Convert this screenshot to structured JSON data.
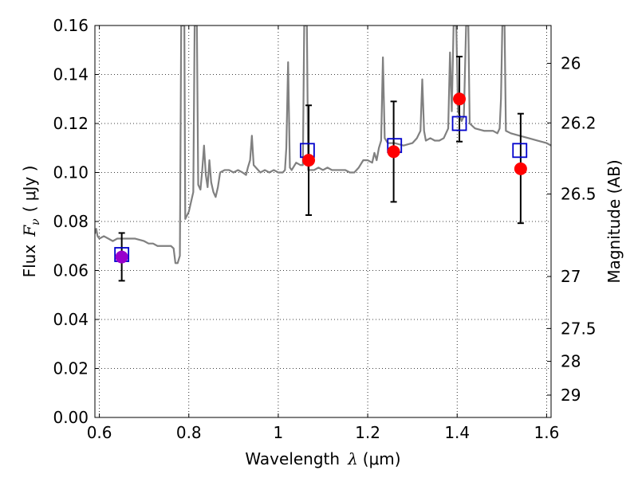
{
  "chart_data": {
    "type": "scatter",
    "xlabel": {
      "prefix": "Wavelength",
      "symbol": "λ",
      "unit": "(μm)"
    },
    "ylabel": {
      "prefix": "Flux",
      "symbol": "F",
      "subscript": "ν",
      "unit": "( μJy )"
    },
    "y2label": "Magnitude (AB)",
    "xlim": [
      0.59,
      1.61
    ],
    "ylim": [
      0.0,
      0.16
    ],
    "grid": true,
    "x_ticks": [
      {
        "value": 0.6,
        "label": "0.6"
      },
      {
        "value": 0.8,
        "label": "0.8"
      },
      {
        "value": 1.0,
        "label": "1"
      },
      {
        "value": 1.2,
        "label": "1.2"
      },
      {
        "value": 1.4,
        "label": "1.4"
      },
      {
        "value": 1.6,
        "label": "1.6"
      }
    ],
    "y_ticks": [
      {
        "value": 0.0,
        "label": "0.00"
      },
      {
        "value": 0.02,
        "label": "0.02"
      },
      {
        "value": 0.04,
        "label": "0.04"
      },
      {
        "value": 0.06,
        "label": "0.06"
      },
      {
        "value": 0.08,
        "label": "0.08"
      },
      {
        "value": 0.1,
        "label": "0.10"
      },
      {
        "value": 0.12,
        "label": "0.12"
      },
      {
        "value": 0.14,
        "label": "0.14"
      },
      {
        "value": 0.16,
        "label": "0.16"
      }
    ],
    "y2_ticks": [
      {
        "mag": 26.0,
        "label": "26"
      },
      {
        "mag": 26.2,
        "label": "26.2"
      },
      {
        "mag": 26.5,
        "label": "26.5"
      },
      {
        "mag": 27.0,
        "label": "27"
      },
      {
        "mag": 27.5,
        "label": "27.5"
      },
      {
        "mag": 28.0,
        "label": "28"
      },
      {
        "mag": 29.0,
        "label": "29"
      }
    ],
    "series": [
      {
        "kind": "model-spectrum",
        "color": "#808080",
        "points": [
          [
            0.59,
            0.075
          ],
          [
            0.593,
            0.077
          ],
          [
            0.596,
            0.074
          ],
          [
            0.6,
            0.073
          ],
          [
            0.61,
            0.074
          ],
          [
            0.62,
            0.073
          ],
          [
            0.63,
            0.072
          ],
          [
            0.64,
            0.073
          ],
          [
            0.66,
            0.073
          ],
          [
            0.68,
            0.073
          ],
          [
            0.7,
            0.072
          ],
          [
            0.71,
            0.071
          ],
          [
            0.72,
            0.071
          ],
          [
            0.73,
            0.07
          ],
          [
            0.74,
            0.07
          ],
          [
            0.76,
            0.07
          ],
          [
            0.766,
            0.069
          ],
          [
            0.77,
            0.063
          ],
          [
            0.775,
            0.063
          ],
          [
            0.78,
            0.066
          ],
          [
            0.783,
            0.16
          ],
          [
            0.79,
            0.16
          ],
          [
            0.792,
            0.081
          ],
          [
            0.8,
            0.084
          ],
          [
            0.805,
            0.088
          ],
          [
            0.81,
            0.092
          ],
          [
            0.813,
            0.16
          ],
          [
            0.818,
            0.16
          ],
          [
            0.821,
            0.095
          ],
          [
            0.826,
            0.093
          ],
          [
            0.83,
            0.101
          ],
          [
            0.834,
            0.111
          ],
          [
            0.838,
            0.099
          ],
          [
            0.842,
            0.094
          ],
          [
            0.846,
            0.105
          ],
          [
            0.85,
            0.096
          ],
          [
            0.855,
            0.092
          ],
          [
            0.86,
            0.09
          ],
          [
            0.865,
            0.094
          ],
          [
            0.87,
            0.1
          ],
          [
            0.88,
            0.101
          ],
          [
            0.89,
            0.101
          ],
          [
            0.9,
            0.1
          ],
          [
            0.91,
            0.101
          ],
          [
            0.92,
            0.1
          ],
          [
            0.928,
            0.099
          ],
          [
            0.932,
            0.102
          ],
          [
            0.937,
            0.105
          ],
          [
            0.941,
            0.115
          ],
          [
            0.945,
            0.103
          ],
          [
            0.95,
            0.102
          ],
          [
            0.96,
            0.1
          ],
          [
            0.97,
            0.101
          ],
          [
            0.98,
            0.1
          ],
          [
            0.99,
            0.101
          ],
          [
            1.0,
            0.1
          ],
          [
            1.01,
            0.1
          ],
          [
            1.015,
            0.101
          ],
          [
            1.018,
            0.11
          ],
          [
            1.022,
            0.145
          ],
          [
            1.026,
            0.102
          ],
          [
            1.03,
            0.101
          ],
          [
            1.04,
            0.104
          ],
          [
            1.05,
            0.103
          ],
          [
            1.055,
            0.103
          ],
          [
            1.058,
            0.16
          ],
          [
            1.064,
            0.16
          ],
          [
            1.067,
            0.101
          ],
          [
            1.08,
            0.101
          ],
          [
            1.09,
            0.102
          ],
          [
            1.1,
            0.101
          ],
          [
            1.11,
            0.102
          ],
          [
            1.12,
            0.101
          ],
          [
            1.13,
            0.101
          ],
          [
            1.14,
            0.101
          ],
          [
            1.15,
            0.101
          ],
          [
            1.16,
            0.1
          ],
          [
            1.17,
            0.1
          ],
          [
            1.18,
            0.102
          ],
          [
            1.19,
            0.105
          ],
          [
            1.2,
            0.105
          ],
          [
            1.21,
            0.104
          ],
          [
            1.215,
            0.108
          ],
          [
            1.22,
            0.105
          ],
          [
            1.225,
            0.11
          ],
          [
            1.23,
            0.113
          ],
          [
            1.234,
            0.147
          ],
          [
            1.238,
            0.114
          ],
          [
            1.245,
            0.112
          ],
          [
            1.26,
            0.112
          ],
          [
            1.28,
            0.111
          ],
          [
            1.3,
            0.112
          ],
          [
            1.31,
            0.114
          ],
          [
            1.318,
            0.117
          ],
          [
            1.322,
            0.138
          ],
          [
            1.326,
            0.117
          ],
          [
            1.33,
            0.113
          ],
          [
            1.34,
            0.114
          ],
          [
            1.35,
            0.113
          ],
          [
            1.36,
            0.113
          ],
          [
            1.37,
            0.114
          ],
          [
            1.38,
            0.118
          ],
          [
            1.384,
            0.149
          ],
          [
            1.388,
            0.125
          ],
          [
            1.392,
            0.16
          ],
          [
            1.398,
            0.16
          ],
          [
            1.402,
            0.125
          ],
          [
            1.41,
            0.121
          ],
          [
            1.415,
            0.123
          ],
          [
            1.42,
            0.16
          ],
          [
            1.425,
            0.16
          ],
          [
            1.428,
            0.12
          ],
          [
            1.44,
            0.118
          ],
          [
            1.46,
            0.117
          ],
          [
            1.48,
            0.117
          ],
          [
            1.49,
            0.116
          ],
          [
            1.495,
            0.118
          ],
          [
            1.498,
            0.13
          ],
          [
            1.501,
            0.16
          ],
          [
            1.506,
            0.16
          ],
          [
            1.509,
            0.117
          ],
          [
            1.52,
            0.116
          ],
          [
            1.54,
            0.115
          ],
          [
            1.56,
            0.114
          ],
          [
            1.58,
            0.113
          ],
          [
            1.6,
            0.112
          ],
          [
            1.61,
            0.111
          ]
        ]
      },
      {
        "kind": "model-photometry",
        "marker": "open-square",
        "color": "#0000cc",
        "points": [
          [
            0.65,
            0.0665
          ],
          [
            1.065,
            0.109
          ],
          [
            1.26,
            0.111
          ],
          [
            1.405,
            0.12
          ],
          [
            1.54,
            0.109
          ]
        ]
      },
      {
        "kind": "observed-photometry",
        "marker": "filled-circle",
        "colors": [
          "#9900cc",
          "#ff0000",
          "#ff0000",
          "#ff0000",
          "#ff0000"
        ],
        "points": [
          {
            "x": 0.65,
            "y": 0.0655,
            "err_low": 0.0558,
            "err_high": 0.0753
          },
          {
            "x": 1.068,
            "y": 0.105,
            "err_low": 0.0826,
            "err_high": 0.1274
          },
          {
            "x": 1.258,
            "y": 0.1085,
            "err_low": 0.088,
            "err_high": 0.129
          },
          {
            "x": 1.405,
            "y": 0.13,
            "err_low": 0.1126,
            "err_high": 0.1473
          },
          {
            "x": 1.542,
            "y": 0.1015,
            "err_low": 0.0793,
            "err_high": 0.124
          }
        ]
      }
    ]
  }
}
